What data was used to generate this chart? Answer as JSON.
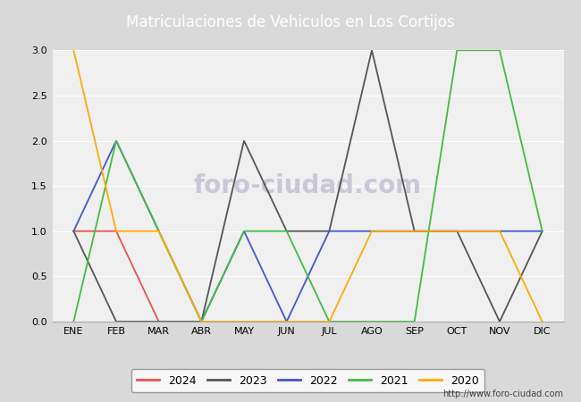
{
  "title": "Matriculaciones de Vehiculos en Los Cortijos",
  "months": [
    "ENE",
    "FEB",
    "MAR",
    "ABR",
    "MAY",
    "JUN",
    "JUL",
    "AGO",
    "SEP",
    "OCT",
    "NOV",
    "DIC"
  ],
  "series": {
    "2024": {
      "color": "#e8534a",
      "data": [
        1,
        1,
        0,
        null,
        null,
        null,
        null,
        null,
        null,
        null,
        null,
        null
      ]
    },
    "2023": {
      "color": "#555555",
      "data": [
        1,
        0,
        0,
        0,
        2,
        1,
        1,
        3,
        1,
        1,
        0,
        1
      ]
    },
    "2022": {
      "color": "#4455cc",
      "data": [
        1,
        2,
        1,
        0,
        1,
        0,
        1,
        1,
        1,
        1,
        1,
        1
      ]
    },
    "2021": {
      "color": "#44bb44",
      "data": [
        0,
        2,
        1,
        0,
        1,
        1,
        0,
        0,
        0,
        3,
        3,
        1
      ]
    },
    "2020": {
      "color": "#ffaa00",
      "data": [
        3,
        1,
        1,
        0,
        0,
        0,
        0,
        1,
        1,
        1,
        1,
        0
      ]
    }
  },
  "ylim": [
    0,
    3.0
  ],
  "yticks": [
    0.0,
    0.5,
    1.0,
    1.5,
    2.0,
    2.5,
    3.0
  ],
  "header_color": "#5b9bd5",
  "header_text_color": "#ffffff",
  "fig_bg_color": "#d9d9d9",
  "plot_bg_color": "#f0f0f0",
  "grid_color": "#ffffff",
  "watermark_text": "foro-ciudad.com",
  "watermark_color": "#c8c8d8",
  "url": "http://www.foro-ciudad.com",
  "legend_order": [
    "2024",
    "2023",
    "2022",
    "2021",
    "2020"
  ]
}
